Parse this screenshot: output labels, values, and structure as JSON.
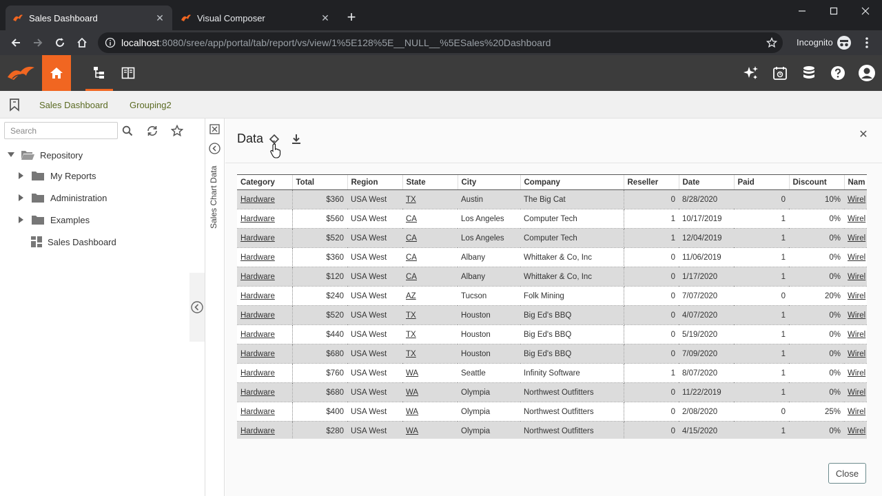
{
  "browser": {
    "tabs": [
      {
        "title": "Sales Dashboard",
        "active": true
      },
      {
        "title": "Visual Composer",
        "active": false
      }
    ],
    "url_host": "localhost",
    "url_path": ":8080/sree/app/portal/tab/report/vs/view/1%5E128%5E__NULL__%5ESales%20Dashboard",
    "incognito_label": "Incognito"
  },
  "colors": {
    "accent": "#f16621",
    "header_bg": "#3c3c3c",
    "tab_text": "#5a6a22"
  },
  "report_tabs": [
    "Sales Dashboard",
    "Grouping2"
  ],
  "left_panel": {
    "search_placeholder": "Search",
    "tree": {
      "root": "Repository",
      "items": [
        "My Reports",
        "Administration",
        "Examples"
      ],
      "dashboard": "Sales Dashboard"
    }
  },
  "side_strip": {
    "title": "Sales Chart Data"
  },
  "dialog": {
    "title": "Data",
    "close_label": "Close",
    "columns": [
      "Category",
      "Total",
      "Region",
      "State",
      "City",
      "Company",
      "Reseller",
      "Date",
      "Paid",
      "Discount",
      "Nam"
    ],
    "rows": [
      {
        "category": "Hardware",
        "total": "$360",
        "region": "USA West",
        "state": "TX",
        "city": "Austin",
        "company": "The Big Cat",
        "reseller": "0",
        "date": "8/28/2020",
        "paid": "0",
        "discount": "10%",
        "name": "Wirel"
      },
      {
        "category": "Hardware",
        "total": "$560",
        "region": "USA West",
        "state": "CA",
        "city": "Los Angeles",
        "company": "Computer Tech",
        "reseller": "1",
        "date": "10/17/2019",
        "paid": "1",
        "discount": "0%",
        "name": "Wirel"
      },
      {
        "category": "Hardware",
        "total": "$520",
        "region": "USA West",
        "state": "CA",
        "city": "Los Angeles",
        "company": "Computer Tech",
        "reseller": "1",
        "date": "12/04/2019",
        "paid": "1",
        "discount": "0%",
        "name": "Wirel"
      },
      {
        "category": "Hardware",
        "total": "$360",
        "region": "USA West",
        "state": "CA",
        "city": "Albany",
        "company": "Whittaker & Co, Inc",
        "reseller": "0",
        "date": "11/06/2019",
        "paid": "1",
        "discount": "0%",
        "name": "Wirel"
      },
      {
        "category": "Hardware",
        "total": "$120",
        "region": "USA West",
        "state": "CA",
        "city": "Albany",
        "company": "Whittaker & Co, Inc",
        "reseller": "0",
        "date": "1/17/2020",
        "paid": "1",
        "discount": "0%",
        "name": "Wirel"
      },
      {
        "category": "Hardware",
        "total": "$240",
        "region": "USA West",
        "state": "AZ",
        "city": "Tucson",
        "company": "Folk Mining",
        "reseller": "0",
        "date": "7/07/2020",
        "paid": "0",
        "discount": "20%",
        "name": "Wirel"
      },
      {
        "category": "Hardware",
        "total": "$520",
        "region": "USA West",
        "state": "TX",
        "city": "Houston",
        "company": "Big Ed's BBQ",
        "reseller": "0",
        "date": "4/07/2020",
        "paid": "1",
        "discount": "0%",
        "name": "Wirel"
      },
      {
        "category": "Hardware",
        "total": "$440",
        "region": "USA West",
        "state": "TX",
        "city": "Houston",
        "company": "Big Ed's BBQ",
        "reseller": "0",
        "date": "5/19/2020",
        "paid": "1",
        "discount": "0%",
        "name": "Wirel"
      },
      {
        "category": "Hardware",
        "total": "$680",
        "region": "USA West",
        "state": "TX",
        "city": "Houston",
        "company": "Big Ed's BBQ",
        "reseller": "0",
        "date": "7/09/2020",
        "paid": "1",
        "discount": "0%",
        "name": "Wirel"
      },
      {
        "category": "Hardware",
        "total": "$760",
        "region": "USA West",
        "state": "WA",
        "city": "Seattle",
        "company": "Infinity Software",
        "reseller": "1",
        "date": "8/07/2020",
        "paid": "1",
        "discount": "0%",
        "name": "Wirel"
      },
      {
        "category": "Hardware",
        "total": "$680",
        "region": "USA West",
        "state": "WA",
        "city": "Olympia",
        "company": "Northwest Outfitters",
        "reseller": "0",
        "date": "11/22/2019",
        "paid": "1",
        "discount": "0%",
        "name": "Wirel"
      },
      {
        "category": "Hardware",
        "total": "$400",
        "region": "USA West",
        "state": "WA",
        "city": "Olympia",
        "company": "Northwest Outfitters",
        "reseller": "0",
        "date": "2/08/2020",
        "paid": "0",
        "discount": "25%",
        "name": "Wirel"
      },
      {
        "category": "Hardware",
        "total": "$280",
        "region": "USA West",
        "state": "WA",
        "city": "Olympia",
        "company": "Northwest Outfitters",
        "reseller": "0",
        "date": "4/15/2020",
        "paid": "1",
        "discount": "0%",
        "name": "Wirel"
      }
    ]
  }
}
